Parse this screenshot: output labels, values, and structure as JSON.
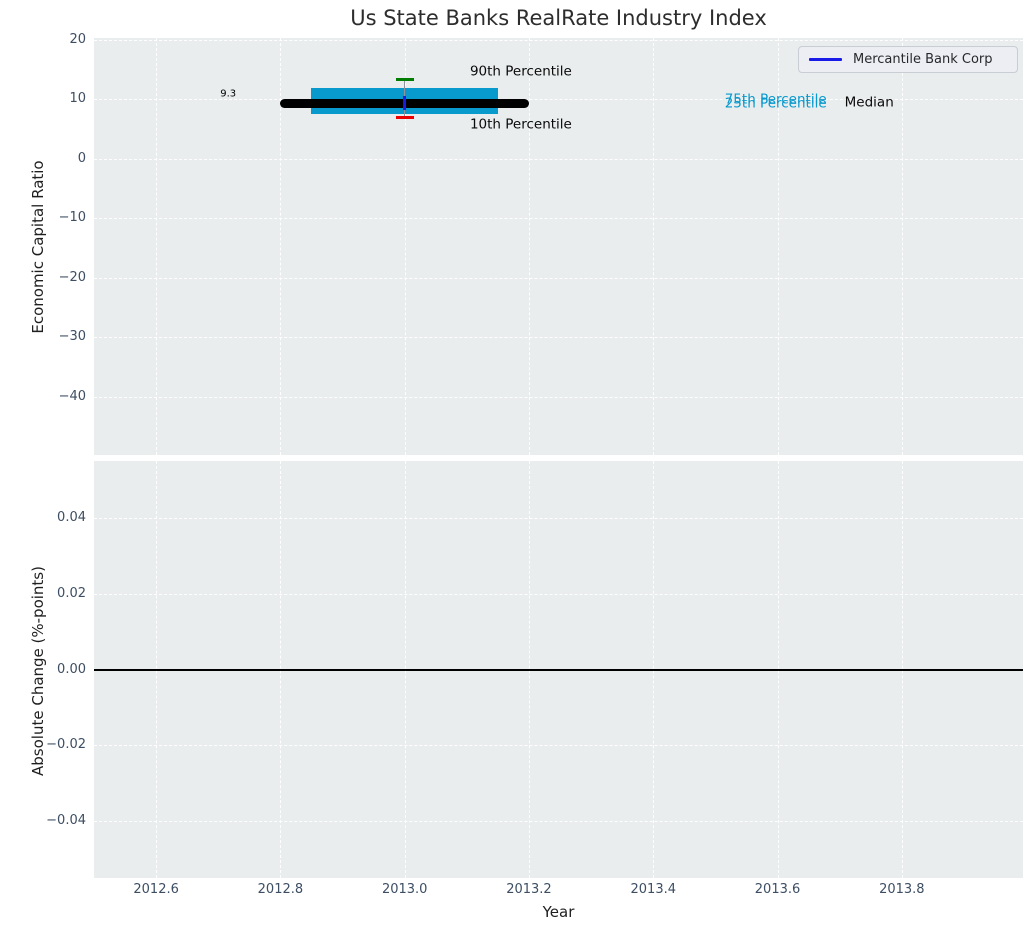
{
  "title": "Us State Banks RealRate Industry Index",
  "legend": {
    "label": "Mercantile Bank Corp"
  },
  "x_axis": {
    "label": "Year",
    "tick_labels": [
      "2012.6",
      "2012.8",
      "2013.0",
      "2013.2",
      "2013.4",
      "2013.6",
      "2013.8"
    ],
    "tick_values": [
      2012.6,
      2012.8,
      2013.0,
      2013.2,
      2013.4,
      2013.6,
      2013.8
    ],
    "range": [
      2012.5,
      2013.995
    ]
  },
  "colors": {
    "panel_bg": "#e9edee",
    "grid": "#ffffff",
    "tick_label": "#3d4e63",
    "title_text": "#2d2d2d",
    "box_fill": "#0899cd",
    "median_line": "#000000",
    "p90_cap": "#007d00",
    "p10_cap": "#ee0000",
    "company_marker": "#1a1ae8",
    "whisker_line": "#8f9399",
    "zero_line": "#000000",
    "legend_line": "#1a1ae8"
  },
  "chart_data": [
    {
      "type": "boxplot",
      "panel": "top",
      "ylabel": "Economic Capital Ratio",
      "ylim": [
        -49.8,
        20.3
      ],
      "ytick_labels": [
        "20",
        "10",
        "0",
        "−10",
        "−20",
        "−30",
        "−40"
      ],
      "ytick_values": [
        20,
        10,
        0,
        -10,
        -20,
        -30,
        -40
      ],
      "grid": "white-dashed",
      "legend_position": "upper right",
      "x": 2013.0,
      "median": 9.3,
      "median_label": "9.3",
      "q1": 7.6,
      "q3": 11.9,
      "p10": 6.9,
      "p90": 13.3,
      "median_x_span": [
        2012.8,
        2013.2
      ],
      "box_x_span": [
        2012.85,
        2013.15
      ],
      "company": {
        "name": "Mercantile Bank Corp",
        "value": 9.3,
        "x": 2013.0
      },
      "annotations": [
        {
          "id": "median-value-label",
          "text": "9.3",
          "x": 2012.716,
          "y": 10.9,
          "align": "center",
          "color": "#000000",
          "size": 10
        },
        {
          "id": "p90-label",
          "text": "90th Percentile",
          "x": 2013.105,
          "y": 14.6,
          "align": "left",
          "color": "#0a0a0a",
          "size": 13.5
        },
        {
          "id": "p10-label",
          "text": "10th Percentile",
          "x": 2013.105,
          "y": 5.7,
          "align": "left",
          "color": "#0a0a0a",
          "size": 13.5
        },
        {
          "id": "p75-label",
          "text": "75th Percentile",
          "x": 2013.515,
          "y": 9.9,
          "align": "left",
          "color": "#0899cd",
          "size": 13.5
        },
        {
          "id": "p25-label",
          "text": "25th Percentile",
          "x": 2013.515,
          "y": 9.25,
          "align": "left",
          "color": "#0899cd",
          "size": 13.5
        },
        {
          "id": "median-label",
          "text": "Median",
          "x": 2013.708,
          "y": 9.4,
          "align": "left",
          "color": "#0a0a0a",
          "size": 13.5
        }
      ]
    },
    {
      "type": "line",
      "panel": "bottom",
      "ylabel": "Absolute Change (%-points)",
      "xlabel": "Year",
      "ylim": [
        -0.055,
        0.055
      ],
      "ytick_labels": [
        "0.04",
        "0.02",
        "0.00",
        "−0.02",
        "−0.04"
      ],
      "ytick_values": [
        0.04,
        0.02,
        0.0,
        -0.02,
        -0.04
      ],
      "grid": "white-dashed",
      "zero_line": 0.0,
      "series": []
    }
  ]
}
